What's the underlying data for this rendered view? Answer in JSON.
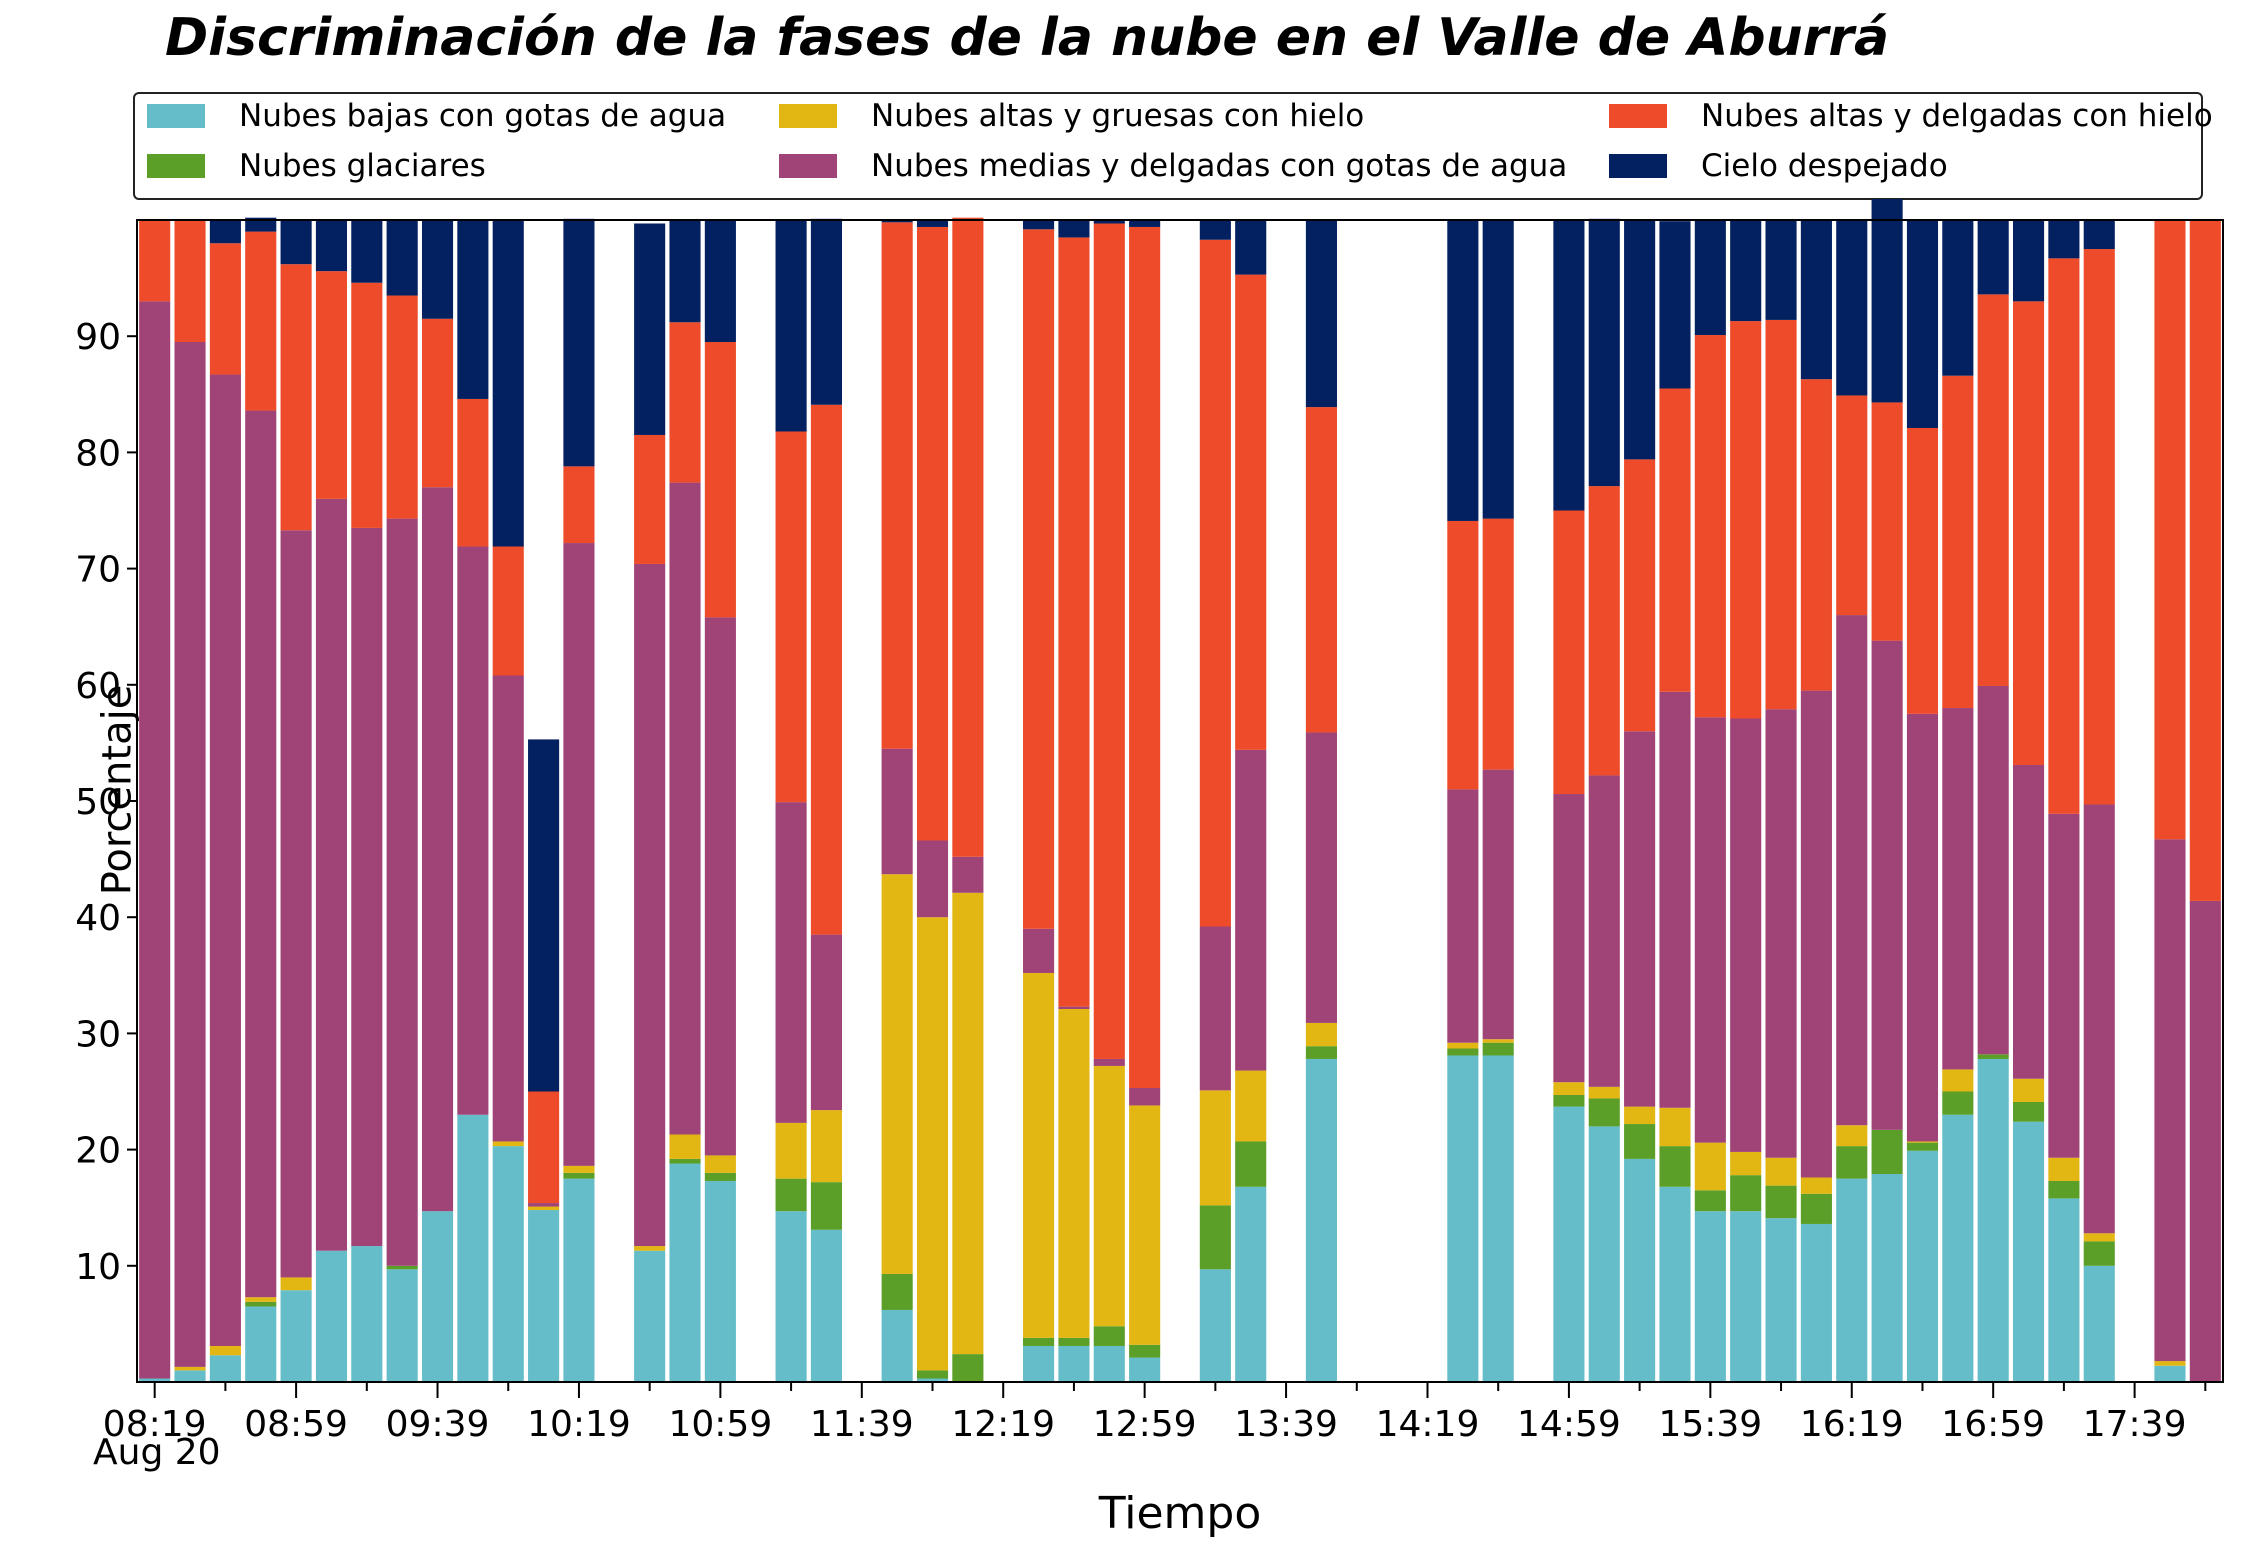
{
  "chart_data": {
    "type": "bar",
    "stacked": true,
    "title": "Discriminación de la fases de la nube en el Valle de Aburrá",
    "xlabel": "Tiempo",
    "ylabel": "Porcentaje",
    "ylim": [
      0,
      100
    ],
    "yticks": [
      10,
      20,
      30,
      40,
      50,
      60,
      70,
      80,
      90
    ],
    "xtick_labels": [
      "08:19",
      "08:59",
      "09:39",
      "10:19",
      "10:59",
      "11:39",
      "12:19",
      "12:59",
      "13:39",
      "14:19",
      "14:59",
      "15:39",
      "16:19",
      "16:59",
      "17:39"
    ],
    "xtick_date": "Aug 20",
    "legend_position": "top",
    "grid": false,
    "series": [
      {
        "name": "Nubes bajas con gotas de agua",
        "color": "#64BDC8",
        "values": [
          0.3,
          1,
          2.3,
          6.5,
          7.9,
          11.3,
          11.7,
          9.7,
          14.7,
          23,
          20.3,
          14.8,
          17.5,
          null,
          11.3,
          18.8,
          17.3,
          null,
          14.7,
          13.1,
          null,
          6.2,
          0.3,
          0,
          null,
          3.1,
          3.1,
          3.1,
          2.1,
          null,
          9.7,
          16.8,
          null,
          27.8,
          null,
          null,
          null,
          28.1,
          28.1,
          null,
          23.7,
          22,
          19.2,
          16.8,
          14.7,
          14.7,
          14.1,
          13.6,
          17.5,
          17.9,
          19.9,
          23,
          27.8,
          22.4,
          15.8,
          10,
          null,
          1.4,
          0
        ]
      },
      {
        "name": "Nubes glaciares",
        "color": "#5B9F29",
        "values": [
          0,
          0,
          0,
          0.4,
          0,
          0,
          0,
          0.3,
          0,
          0,
          0,
          0,
          0.5,
          null,
          0,
          0.4,
          0.7,
          null,
          2.8,
          4.1,
          null,
          3.1,
          0.7,
          2.4,
          null,
          0.7,
          0.7,
          1.7,
          1.1,
          null,
          5.5,
          3.9,
          null,
          1.1,
          null,
          null,
          null,
          0.6,
          1.1,
          null,
          1,
          2.4,
          3,
          3.5,
          1.8,
          3.1,
          2.8,
          2.6,
          2.8,
          3.8,
          0.7,
          2,
          0.4,
          1.7,
          1.5,
          2.1,
          null,
          0,
          0
        ]
      },
      {
        "name": "Nubes altas y gruesas con hielo",
        "color": "#E2B613",
        "values": [
          0,
          0.3,
          0.8,
          0.4,
          1.1,
          0,
          0,
          0,
          0,
          0,
          0.4,
          0.3,
          0.6,
          null,
          0.4,
          2.1,
          1.5,
          null,
          4.8,
          6.2,
          null,
          34.4,
          39,
          39.7,
          null,
          31.4,
          28.3,
          22.4,
          20.6,
          null,
          9.9,
          6.1,
          null,
          2,
          null,
          null,
          null,
          0.5,
          0.3,
          null,
          1.1,
          1,
          1.5,
          3.3,
          4.1,
          2,
          2.4,
          1.4,
          1.8,
          0,
          0.1,
          1.9,
          0,
          2,
          2,
          0.7,
          null,
          0.4,
          0
        ]
      },
      {
        "name": "Nubes medias y delgadas con gotas de agua",
        "color": "#A04376",
        "values": [
          92.7,
          88.2,
          83.6,
          76.3,
          64.3,
          64.7,
          61.8,
          64.3,
          62.3,
          48.9,
          40.1,
          0.3,
          53.6,
          null,
          58.7,
          56.1,
          46.3,
          null,
          27.6,
          15.1,
          null,
          10.8,
          6.6,
          3.1,
          null,
          3.8,
          0.2,
          0.6,
          1.5,
          null,
          14.1,
          27.6,
          null,
          25,
          null,
          null,
          null,
          21.8,
          23.2,
          null,
          24.8,
          26.8,
          32.3,
          35.8,
          36.6,
          37.3,
          38.6,
          41.9,
          43.9,
          42.1,
          36.8,
          31.1,
          31.7,
          27,
          29.6,
          36.9,
          null,
          44.9,
          41.4
        ]
      },
      {
        "name": "Nubes altas y delgadas con hielo",
        "color": "#EE4B2A",
        "values": [
          7,
          10.5,
          11.3,
          15.4,
          22.9,
          19.6,
          21.1,
          19.2,
          14.5,
          12.7,
          11.1,
          9.6,
          6.6,
          null,
          11.1,
          13.8,
          23.7,
          null,
          31.9,
          45.6,
          null,
          45.3,
          52.8,
          55,
          null,
          60.2,
          66.2,
          71.9,
          74.1,
          null,
          59.1,
          40.9,
          null,
          28,
          null,
          null,
          null,
          23.1,
          21.6,
          null,
          24.4,
          24.9,
          23.4,
          26.1,
          32.9,
          34.2,
          33.5,
          26.8,
          18.9,
          20.5,
          24.6,
          28.6,
          33.7,
          39.9,
          47.8,
          47.8,
          null,
          53.3,
          58.6
        ]
      },
      {
        "name": "Cielo despejado",
        "color": "#032060",
        "values": [
          0,
          0,
          2,
          1.2,
          3.8,
          4.4,
          5.4,
          6.5,
          8.5,
          15.4,
          28.1,
          30.3,
          21.3,
          null,
          18.2,
          8.8,
          10.5,
          null,
          18.2,
          16,
          null,
          0.2,
          0.6,
          0,
          null,
          0.8,
          1.5,
          0.3,
          0.6,
          null,
          1.7,
          4.7,
          null,
          16.1,
          null,
          null,
          null,
          25.9,
          25.7,
          null,
          25,
          23,
          20.6,
          14.4,
          9.9,
          8.7,
          8.6,
          13.7,
          15.1,
          17.5,
          17.9,
          13.4,
          6.4,
          7,
          3.3,
          2.5,
          null,
          0,
          0
        ]
      }
    ]
  }
}
